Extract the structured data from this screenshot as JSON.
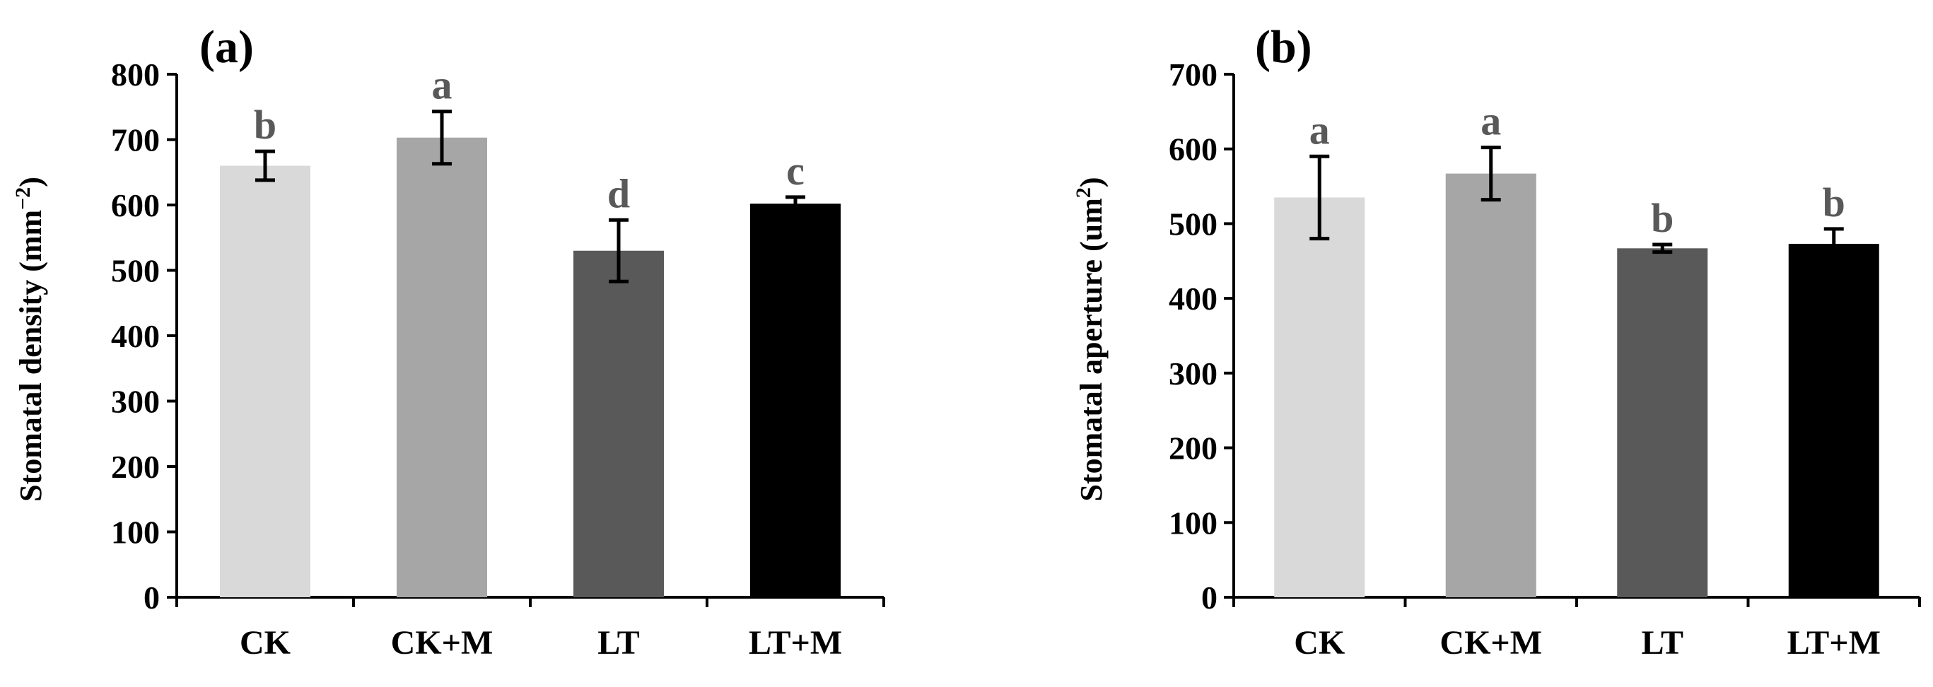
{
  "chart_data": [
    {
      "type": "bar",
      "panel_label": "(a)",
      "categories": [
        "CK",
        "CK+M",
        "LT",
        "LT+M"
      ],
      "values": [
        660,
        703,
        530,
        602
      ],
      "errors": [
        22,
        40,
        47,
        10
      ],
      "significance": [
        "b",
        "a",
        "d",
        "c"
      ],
      "colors": [
        "#d9d9d9",
        "#a6a6a6",
        "#595959",
        "#000000"
      ],
      "ylabel_main": "Stomatal density (mm",
      "ylabel_sup": "−2",
      "ylabel_end": ")",
      "ylim": [
        0,
        800
      ],
      "yticks": [
        0,
        100,
        200,
        300,
        400,
        500,
        600,
        700,
        800
      ],
      "grid": false,
      "legend": "none"
    },
    {
      "type": "bar",
      "panel_label": "(b)",
      "categories": [
        "CK",
        "CK+M",
        "LT",
        "LT+M"
      ],
      "values": [
        535,
        567,
        467,
        473
      ],
      "errors": [
        55,
        35,
        5,
        20
      ],
      "significance": [
        "a",
        "a",
        "b",
        "b"
      ],
      "colors": [
        "#d9d9d9",
        "#a6a6a6",
        "#595959",
        "#000000"
      ],
      "ylabel_main": "Stomatal aperture (um",
      "ylabel_sup": "2",
      "ylabel_end": ")",
      "ylim": [
        0,
        700
      ],
      "yticks": [
        0,
        100,
        200,
        300,
        400,
        500,
        600,
        700
      ],
      "grid": false,
      "legend": "none"
    }
  ]
}
